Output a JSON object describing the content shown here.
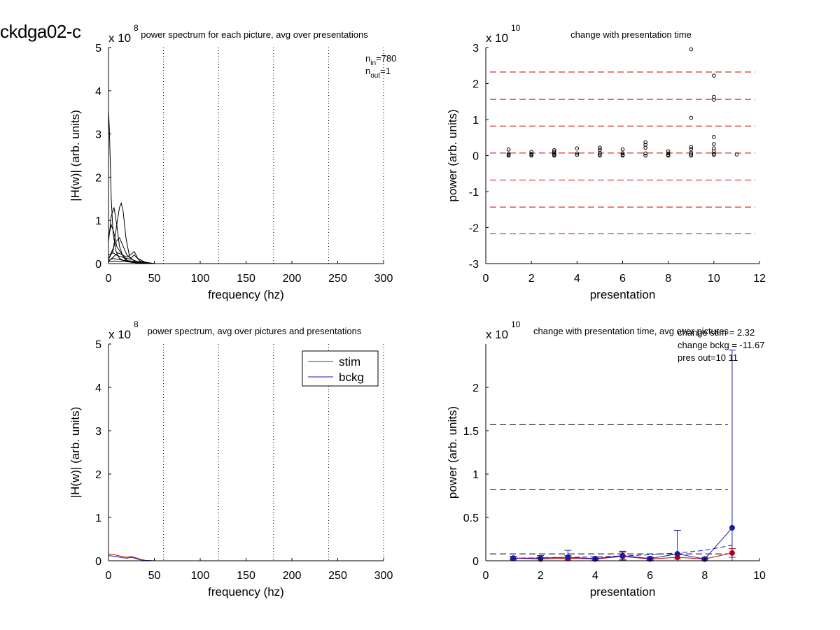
{
  "page_label": "ckdga02-c",
  "chart_data": [
    {
      "id": "tl",
      "type": "line",
      "title": "power spectrum for each picture, avg over presentations",
      "xlabel": "frequency (hz)",
      "ylabel": "|H(w)| (arb. units)",
      "exponent_base": "x 10",
      "exponent_power": "8",
      "xlim": [
        0,
        300
      ],
      "ylim": [
        0,
        5
      ],
      "xticks": [
        0,
        50,
        100,
        150,
        200,
        250,
        300
      ],
      "yticks": [
        0,
        1,
        2,
        3,
        4,
        5
      ],
      "vlines_dotted": [
        60,
        120,
        180,
        240,
        300
      ],
      "annotation": {
        "n_in_base": "n",
        "n_in_sub": "in",
        "n_in_value": "=780",
        "n_out_base": "n",
        "n_out_sub": "out",
        "n_out_value": "=1"
      },
      "series": [
        {
          "color": "#000000",
          "x": [
            0,
            1,
            3,
            5,
            8,
            12,
            18,
            25,
            35,
            50,
            300
          ],
          "y": [
            3.55,
            3.1,
            1.5,
            0.7,
            0.3,
            0.12,
            0.05,
            0.03,
            0.01,
            0.0,
            0.0
          ]
        },
        {
          "color": "#000000",
          "x": [
            0,
            3,
            6,
            9,
            12,
            16,
            20,
            25,
            35,
            50,
            300
          ],
          "y": [
            0.5,
            1.1,
            1.3,
            0.9,
            0.4,
            0.15,
            0.06,
            0.03,
            0.01,
            0.0,
            0.0
          ]
        },
        {
          "color": "#000000",
          "x": [
            0,
            5,
            9,
            12,
            14,
            16,
            19,
            23,
            30,
            45,
            300
          ],
          "y": [
            0.1,
            0.3,
            0.9,
            1.3,
            1.4,
            1.2,
            0.6,
            0.15,
            0.03,
            0.0,
            0.0
          ]
        },
        {
          "color": "#000000",
          "x": [
            0,
            3,
            6,
            9,
            12,
            15,
            20,
            25,
            35,
            50,
            300
          ],
          "y": [
            0.6,
            0.9,
            0.7,
            0.4,
            0.3,
            0.2,
            0.08,
            0.03,
            0.01,
            0.0,
            0.0
          ]
        },
        {
          "color": "#000000",
          "x": [
            0,
            4,
            8,
            12,
            16,
            20,
            24,
            28,
            35,
            50,
            300
          ],
          "y": [
            0.1,
            0.3,
            0.5,
            0.6,
            0.4,
            0.2,
            0.12,
            0.2,
            0.05,
            0.0,
            0.0
          ]
        },
        {
          "color": "#000000",
          "x": [
            0,
            5,
            10,
            15,
            20,
            25,
            28,
            32,
            40,
            50,
            300
          ],
          "y": [
            0.05,
            0.15,
            0.25,
            0.2,
            0.15,
            0.22,
            0.28,
            0.12,
            0.03,
            0.0,
            0.0
          ]
        },
        {
          "color": "#000000",
          "x": [
            0,
            5,
            10,
            15,
            20,
            25,
            30,
            40,
            50,
            300
          ],
          "y": [
            0.2,
            0.25,
            0.18,
            0.15,
            0.12,
            0.1,
            0.06,
            0.02,
            0.0,
            0.0
          ]
        },
        {
          "color": "#000000",
          "x": [
            0,
            5,
            10,
            15,
            20,
            25,
            30,
            40,
            50,
            300
          ],
          "y": [
            0.08,
            0.12,
            0.1,
            0.08,
            0.07,
            0.06,
            0.04,
            0.01,
            0.0,
            0.0
          ]
        },
        {
          "color": "#000000",
          "x": [
            0,
            6,
            12,
            18,
            24,
            30,
            40,
            50,
            300
          ],
          "y": [
            0.04,
            0.06,
            0.05,
            0.06,
            0.04,
            0.03,
            0.01,
            0.0,
            0.0
          ]
        }
      ]
    },
    {
      "id": "tr",
      "type": "scatter",
      "title": "change with presentation time",
      "xlabel": "presentation",
      "ylabel": "power (arb. units)",
      "exponent_base": "x 10",
      "exponent_power": "10",
      "xlim": [
        0,
        12
      ],
      "ylim": [
        -3,
        3
      ],
      "xticks": [
        0,
        2,
        4,
        6,
        8,
        10,
        12
      ],
      "yticks": [
        -3,
        -2,
        -1,
        0,
        1,
        2,
        3
      ],
      "hlines_dashed": {
        "color": "#cc0000",
        "y": [
          2.32,
          1.56,
          0.82,
          0.07,
          -0.68,
          -1.43,
          -2.17
        ]
      },
      "points": {
        "x": [
          1,
          1,
          1,
          1,
          2,
          2,
          2,
          2,
          3,
          3,
          3,
          3,
          3,
          4,
          4,
          4,
          5,
          5,
          5,
          5,
          5,
          6,
          6,
          6,
          6,
          7,
          7,
          7,
          7,
          7,
          8,
          8,
          8,
          8,
          9,
          9,
          9,
          9,
          9,
          9,
          9,
          10,
          10,
          10,
          10,
          10,
          10,
          10,
          10,
          10,
          11
        ],
        "y": [
          0.17,
          0.05,
          0.02,
          0.0,
          0.1,
          0.04,
          0.01,
          0.0,
          0.15,
          0.1,
          0.05,
          0.02,
          0.0,
          0.2,
          0.06,
          0.02,
          0.22,
          0.16,
          0.08,
          0.03,
          0.0,
          0.17,
          0.06,
          0.02,
          0.0,
          0.37,
          0.3,
          0.22,
          0.06,
          0.0,
          0.12,
          0.06,
          0.02,
          0.0,
          2.95,
          1.05,
          0.24,
          0.18,
          0.08,
          0.03,
          0.0,
          2.22,
          1.63,
          1.55,
          0.52,
          0.32,
          0.2,
          0.12,
          0.05,
          0.02,
          0.03
        ]
      }
    },
    {
      "id": "bl",
      "type": "line",
      "title": "power spectrum, avg over pictures and presentations",
      "xlabel": "frequency (hz)",
      "ylabel": "|H(w)| (arb. units)",
      "exponent_base": "x 10",
      "exponent_power": "8",
      "xlim": [
        0,
        300
      ],
      "ylim": [
        0,
        5
      ],
      "xticks": [
        0,
        50,
        100,
        150,
        200,
        250,
        300
      ],
      "yticks": [
        0,
        1,
        2,
        3,
        4,
        5
      ],
      "vlines_dotted": [
        60,
        120,
        180,
        240,
        300
      ],
      "legend_position": "top-right",
      "series": [
        {
          "name": "stim",
          "color": "#cc0000",
          "x": [
            0,
            5,
            10,
            15,
            20,
            25,
            30,
            35,
            40,
            50,
            300
          ],
          "y": [
            0.16,
            0.15,
            0.12,
            0.1,
            0.08,
            0.1,
            0.07,
            0.03,
            0.01,
            0.0,
            0.0
          ]
        },
        {
          "name": "bckg",
          "color": "#1a1aaa",
          "x": [
            0,
            5,
            10,
            15,
            20,
            25,
            30,
            35,
            40,
            50,
            300
          ],
          "y": [
            0.12,
            0.11,
            0.09,
            0.07,
            0.06,
            0.08,
            0.05,
            0.02,
            0.01,
            0.0,
            0.0
          ]
        }
      ]
    },
    {
      "id": "br",
      "type": "line",
      "title": "change with presentation time, avg over pictures",
      "xlabel": "presentation",
      "ylabel": "power (arb. units)",
      "exponent_base": "x 10",
      "exponent_power": "10",
      "xlim": [
        0,
        10
      ],
      "ylim": [
        0,
        2.5
      ],
      "xticks": [
        0,
        2,
        4,
        6,
        8,
        10
      ],
      "yticks": [
        0,
        0.5,
        1,
        1.5,
        2
      ],
      "ytick_labels": [
        "0",
        "0.5",
        "1",
        "1.5",
        "2"
      ],
      "hlines_dashed": {
        "color": "#000000",
        "y": [
          1.57,
          0.82,
          0.08
        ],
        "xmax": 9
      },
      "trend_dashed": {
        "color": "#1a1aaa",
        "x": [
          1,
          2,
          3,
          4,
          5,
          6,
          7,
          8,
          9
        ],
        "y": [
          0.03,
          0.035,
          0.04,
          0.045,
          0.055,
          0.07,
          0.09,
          0.12,
          0.18
        ]
      },
      "annotations": [
        "change stim = 2.32",
        "change bckg = -11.67",
        "pres out=10 11"
      ],
      "series": [
        {
          "name": "stim",
          "color": "#cc0000",
          "x": [
            1,
            2,
            3,
            4,
            5,
            6,
            7,
            8,
            9
          ],
          "y": [
            0.03,
            0.02,
            0.03,
            0.02,
            0.05,
            0.02,
            0.04,
            0.02,
            0.09
          ],
          "err_up": [
            0.02,
            0.02,
            0.03,
            0.02,
            0.05,
            0.02,
            0.03,
            0.02,
            0.05
          ],
          "err_down": [
            0.01,
            0.02,
            0.02,
            0.01,
            0.04,
            0.01,
            0.02,
            0.01,
            0.05
          ]
        },
        {
          "name": "bckg",
          "color": "#1a1aaa",
          "x": [
            1,
            2,
            3,
            4,
            5,
            6,
            7,
            8,
            9
          ],
          "y": [
            0.03,
            0.03,
            0.04,
            0.025,
            0.06,
            0.025,
            0.08,
            0.02,
            0.38
          ],
          "err_up": [
            0.02,
            0.03,
            0.08,
            0.02,
            0.05,
            0.02,
            0.27,
            0.02,
            2.05
          ],
          "err_down": [
            0.02,
            0.03,
            0.04,
            0.02,
            0.05,
            0.02,
            0.08,
            0.02,
            0.38
          ]
        }
      ]
    }
  ]
}
